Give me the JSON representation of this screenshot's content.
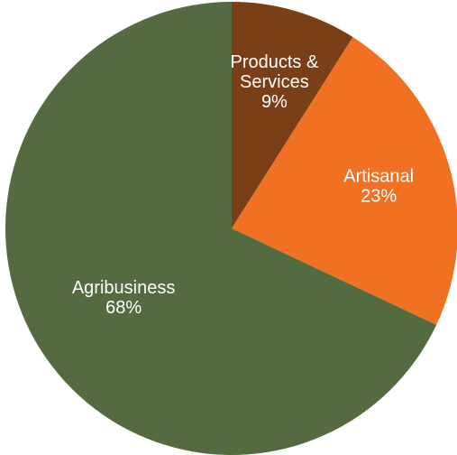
{
  "chart_data": {
    "type": "pie",
    "title": "",
    "slices": [
      {
        "name": "Products & Services",
        "name_lines": [
          "Products &",
          "Services"
        ],
        "value": 9,
        "label": "9%",
        "color": "#7a3f17"
      },
      {
        "name": "Artisanal",
        "name_lines": [
          "Artisanal"
        ],
        "value": 23,
        "label": "23%",
        "color": "#f07122"
      },
      {
        "name": "Agribusiness",
        "name_lines": [
          "Agribusiness"
        ],
        "value": 68,
        "label": "68%",
        "color": "#546a40"
      }
    ],
    "start_angle_deg": 0,
    "direction": "clockwise",
    "legend": "none",
    "data_labels": "inside"
  }
}
